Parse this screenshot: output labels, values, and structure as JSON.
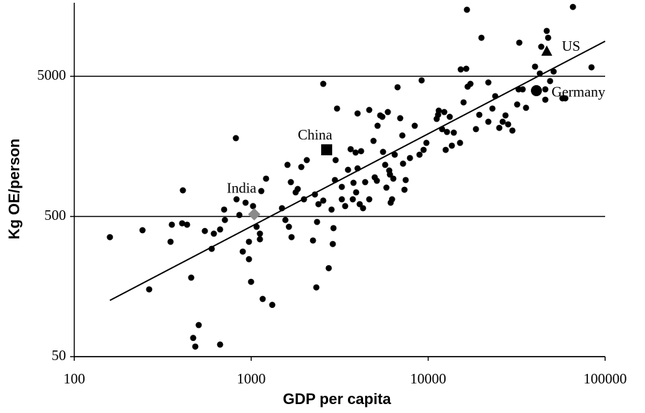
{
  "chart_data": {
    "type": "scatter",
    "x_label": "GDP per capita",
    "y_label": "Kg OE/person",
    "xscale": "log",
    "yscale": "log",
    "xlim": [
      100,
      100000
    ],
    "ylim": [
      50,
      16000
    ],
    "xticks": [
      100,
      1000,
      10000,
      100000
    ],
    "yticks": [
      50,
      500,
      5000
    ],
    "grid": true,
    "color": "#000000",
    "points": {
      "x": [
        159,
        243,
        265,
        350,
        356,
        411,
        407,
        434,
        458,
        470,
        483,
        505,
        667,
        547,
        598,
        615,
        667,
        703,
        710,
        826,
        819,
        857,
        896,
        929,
        971,
        971,
        998,
        1024,
        1072,
        1120,
        1120,
        1140,
        1161,
        1213,
        1315,
        1492,
        1560,
        1603,
        1633,
        1675,
        1690,
        1783,
        1832,
        1919,
        1986,
        2061,
        2234,
        2291,
        2333,
        2355,
        2399,
        2553,
        2553,
        2742,
        2844,
        2891,
        2917,
        2999,
        2972,
        3055,
        3251,
        3251,
        3396,
        3524,
        3648,
        3750,
        3784,
        3890,
        3917,
        3990,
        3990,
        4102,
        4178,
        4285,
        4406,
        4645,
        4645,
        4909,
        4989,
        5129,
        5176,
        5358,
        5508,
        5559,
        5715,
        5808,
        5916,
        6026,
        6081,
        6138,
        6252,
        6353,
        6471,
        6714,
        6950,
        7211,
        7145,
        7345,
        7464,
        7889,
        8395,
        8933,
        9183,
        9419,
        9772,
        11170,
        11380,
        11480,
        11990,
        12330,
        12560,
        12770,
        13240,
        13610,
        13960,
        15140,
        15280,
        15850,
        16410,
        16560,
        16710,
        17330,
        18620,
        19450,
        20000,
        21880,
        21880,
        23070,
        23930,
        25230,
        26370,
        27350,
        28310,
        29920,
        31840,
        32430,
        32730,
        34200,
        35730,
        40180,
        42760,
        43550,
        45920,
        46770,
        45920,
        47640,
        48870,
        51170,
        65770,
        83750,
        57410,
        59570
      ],
      "y": [
        356,
        399,
        151,
        330,
        437,
        768,
        447,
        437,
        183,
        68,
        59,
        84,
        61,
        394,
        294,
        377,
        404,
        560,
        472,
        663,
        1811,
        512,
        281,
        627,
        248,
        330,
        171,
        593,
        422,
        344,
        377,
        759,
        129,
        931,
        117,
        573,
        472,
        1167,
        422,
        879,
        356,
        743,
        785,
        1127,
        663,
        1262,
        337,
        718,
        156,
        457,
        612,
        649,
        4416,
        214,
        560,
        318,
        413,
        1262,
        910,
        2944,
        813,
        663,
        593,
        1076,
        1510,
        663,
        869,
        1429,
        743,
        2716,
        1102,
        612,
        1462,
        573,
        879,
        2877,
        663,
        1730,
        951,
        899,
        2218,
        2630,
        2570,
        1445,
        1167,
        803,
        2780,
        1064,
        995,
        627,
        663,
        931,
        1380,
        4178,
        2512,
        1191,
        1892,
        776,
        910,
        1306,
        2218,
        1380,
        4677,
        1493,
        1675,
        2483,
        2655,
        2844,
        2099,
        2780,
        1493,
        2004,
        2570,
        1600,
        1982,
        1675,
        5598,
        3258,
        5662,
        14930,
        4217,
        4416,
        2099,
        2655,
        9419,
        4519,
        2371,
        2944,
        3606,
        2143,
        2371,
        2630,
        2270,
        2051,
        3148,
        4036,
        8690,
        4036,
        2979,
        5861,
        5236,
        8128,
        4036,
        10540,
        3404,
        9419,
        4624,
        5408,
        15630,
        5794,
        3483,
        3483
      ]
    },
    "highlights": [
      {
        "label": "US",
        "x": 46800,
        "y": 7500,
        "marker": "triangle",
        "color": "#000000"
      },
      {
        "label": "Germany",
        "x": 40900,
        "y": 3950,
        "marker": "big-circle",
        "color": "#000000"
      },
      {
        "label": "China",
        "x": 2670,
        "y": 1495,
        "marker": "square",
        "color": "#000000"
      },
      {
        "label": "India",
        "x": 1040,
        "y": 518,
        "marker": "diamond",
        "color": "#8a8a8a"
      }
    ],
    "trend_line": {
      "x": [
        159,
        100000
      ],
      "y": [
        126,
        8900
      ],
      "color": "#000000"
    }
  }
}
